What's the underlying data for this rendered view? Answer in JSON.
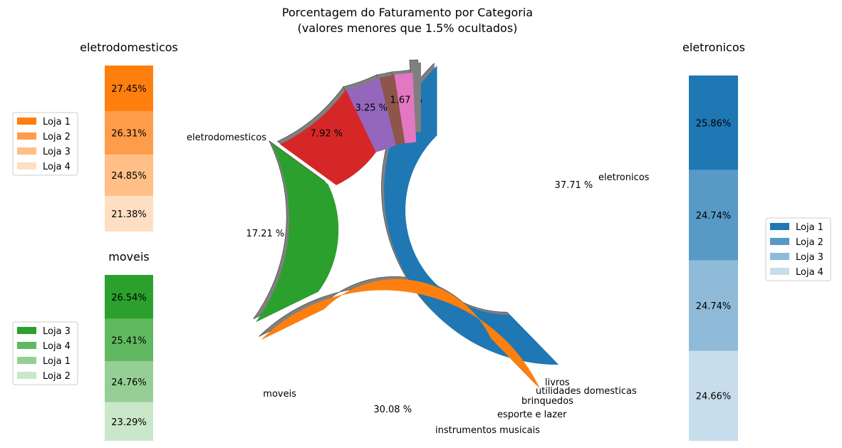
{
  "chart_data": [
    {
      "type": "pie",
      "title": "Porcentagem do Faturamento por Categoria",
      "subtitle": "(valores menores que 1.5% ocultados)",
      "slices": [
        {
          "label": "eletronicos",
          "value": 37.71,
          "pct_label": "37.71 %",
          "color": "#1f77b4"
        },
        {
          "label": "eletrodomesticos",
          "value": 30.08,
          "pct_label": "30.08 %",
          "color": "#ff7f0e"
        },
        {
          "label": "moveis",
          "value": 17.21,
          "pct_label": "17.21 %",
          "color": "#2ca02c"
        },
        {
          "label": "instrumentos musicais",
          "value": 7.92,
          "pct_label": "7.92 %",
          "color": "#d62728"
        },
        {
          "label": "esporte e lazer",
          "value": 3.25,
          "pct_label": "3.25 %",
          "color": "#9467bd"
        },
        {
          "label": "brinquedos",
          "value": 1.4,
          "pct_label": "",
          "color": "#8c564b"
        },
        {
          "label": "utilidades domesticas",
          "value": 1.67,
          "pct_label": "1.67 %",
          "color": "#e377c2"
        },
        {
          "label": "livros",
          "value": 0.76,
          "pct_label": "",
          "color": "#7f7f7f"
        }
      ]
    },
    {
      "type": "bar",
      "stacked": true,
      "title": "eletrodomesticos",
      "legend_position": "left",
      "series": [
        {
          "name": "Loja 1",
          "value": 27.45,
          "label": "27.45%",
          "color": "#ff7f0e"
        },
        {
          "name": "Loja 2",
          "value": 26.31,
          "label": "26.31%",
          "color": "#ff9c4a"
        },
        {
          "name": "Loja 3",
          "value": 24.85,
          "label": "24.85%",
          "color": "#ffbf87"
        },
        {
          "name": "Loja 4",
          "value": 21.38,
          "label": "21.38%",
          "color": "#ffdfc3"
        }
      ]
    },
    {
      "type": "bar",
      "stacked": true,
      "title": "moveis",
      "legend_position": "left",
      "series": [
        {
          "name": "Loja 3",
          "value": 26.54,
          "label": "26.54%",
          "color": "#2ca02c"
        },
        {
          "name": "Loja 4",
          "value": 25.41,
          "label": "25.41%",
          "color": "#60b960"
        },
        {
          "name": "Loja 1",
          "value": 24.76,
          "label": "24.76%",
          "color": "#95cf95"
        },
        {
          "name": "Loja 2",
          "value": 23.29,
          "label": "23.29%",
          "color": "#cae7ca"
        }
      ]
    },
    {
      "type": "bar",
      "stacked": true,
      "title": "eletronicos",
      "legend_position": "right",
      "series": [
        {
          "name": "Loja 1",
          "value": 25.86,
          "label": "25.86%",
          "color": "#1f77b4"
        },
        {
          "name": "Loja 2",
          "value": 24.74,
          "label": "24.74%",
          "color": "#5799c7"
        },
        {
          "name": "Loja 3",
          "value": 24.74,
          "label": "24.74%",
          "color": "#8fbbd9"
        },
        {
          "name": "Loja 4",
          "value": 24.66,
          "label": "24.66%",
          "color": "#c7ddec"
        }
      ]
    }
  ]
}
